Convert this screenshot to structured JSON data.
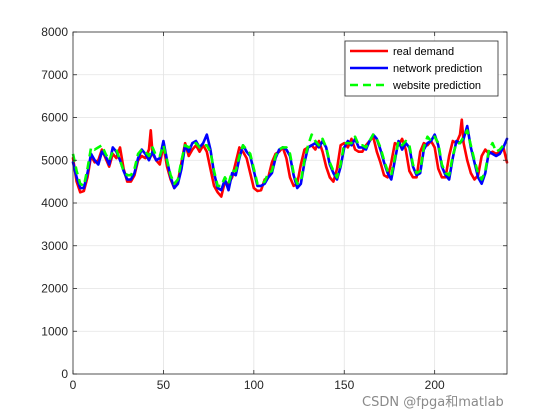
{
  "chart_data": {
    "type": "line",
    "title": "",
    "xlabel": "",
    "ylabel": "",
    "xlim": [
      0,
      240
    ],
    "ylim": [
      0,
      8000
    ],
    "xticks": [
      0,
      50,
      100,
      150,
      200
    ],
    "yticks": [
      0,
      1000,
      2000,
      3000,
      4000,
      5000,
      6000,
      7000,
      8000
    ],
    "grid": true,
    "legend_position": "top-right",
    "series": [
      {
        "name": "real demand",
        "color": "#ff0000",
        "style": "solid",
        "x": [
          0,
          2,
          4,
          6,
          8,
          10,
          12,
          14,
          16,
          18,
          20,
          22,
          24,
          26,
          28,
          30,
          32,
          34,
          36,
          38,
          40,
          42,
          43,
          44,
          46,
          48,
          50,
          52,
          54,
          56,
          58,
          60,
          62,
          64,
          66,
          68,
          70,
          72,
          74,
          76,
          78,
          80,
          82,
          84,
          86,
          88,
          90,
          92,
          94,
          96,
          98,
          100,
          102,
          104,
          106,
          108,
          110,
          112,
          114,
          116,
          118,
          120,
          122,
          124,
          126,
          128,
          130,
          132,
          134,
          136,
          138,
          140,
          142,
          144,
          146,
          148,
          150,
          152,
          154,
          156,
          158,
          160,
          162,
          164,
          166,
          168,
          170,
          172,
          174,
          176,
          178,
          180,
          182,
          184,
          186,
          188,
          190,
          192,
          194,
          196,
          198,
          200,
          202,
          204,
          206,
          208,
          210,
          212,
          214,
          215,
          216,
          218,
          220,
          222,
          224,
          226,
          228,
          230,
          232,
          234,
          236,
          238,
          240
        ],
        "values": [
          5050,
          4500,
          4250,
          4280,
          4600,
          5100,
          4950,
          5000,
          5250,
          5050,
          4850,
          5150,
          5050,
          5300,
          4800,
          4500,
          4500,
          4650,
          5000,
          5100,
          5050,
          5250,
          5700,
          5150,
          5000,
          4900,
          5350,
          4850,
          4550,
          4350,
          4500,
          4950,
          5400,
          5100,
          5250,
          5350,
          5200,
          5350,
          5200,
          4800,
          4400,
          4250,
          4150,
          4500,
          4450,
          4600,
          4950,
          5300,
          5200,
          5050,
          4700,
          4350,
          4280,
          4300,
          4550,
          4600,
          4950,
          5150,
          5200,
          5300,
          5050,
          4600,
          4400,
          4450,
          4900,
          5250,
          5300,
          5350,
          5250,
          5450,
          5200,
          4850,
          4600,
          4500,
          4800,
          5350,
          5400,
          5300,
          5500,
          5250,
          5200,
          5200,
          5350,
          5450,
          5550,
          5200,
          4950,
          4650,
          4600,
          4950,
          5400,
          5350,
          5500,
          5250,
          4750,
          4600,
          4600,
          5200,
          5400,
          5350,
          5450,
          5300,
          4800,
          4600,
          4600,
          5100,
          5450,
          5400,
          5600,
          5950,
          5400,
          5000,
          4700,
          4550,
          4650,
          5100,
          5250,
          5150,
          5200,
          5150,
          5200,
          5300,
          4950
        ]
      },
      {
        "name": "network prediction",
        "color": "#0000ff",
        "style": "solid",
        "x": [
          0,
          2,
          4,
          6,
          8,
          10,
          12,
          14,
          16,
          18,
          20,
          22,
          24,
          26,
          28,
          30,
          32,
          34,
          36,
          38,
          40,
          42,
          44,
          46,
          48,
          50,
          52,
          54,
          56,
          58,
          60,
          62,
          64,
          66,
          68,
          70,
          72,
          74,
          76,
          78,
          80,
          82,
          84,
          86,
          88,
          90,
          92,
          94,
          96,
          98,
          100,
          102,
          104,
          106,
          108,
          110,
          112,
          114,
          116,
          118,
          120,
          122,
          124,
          126,
          128,
          130,
          132,
          134,
          136,
          138,
          140,
          142,
          144,
          146,
          148,
          150,
          152,
          154,
          156,
          158,
          160,
          162,
          164,
          166,
          168,
          170,
          172,
          174,
          176,
          178,
          180,
          182,
          184,
          186,
          188,
          190,
          192,
          194,
          196,
          198,
          200,
          202,
          204,
          206,
          208,
          210,
          212,
          214,
          216,
          218,
          220,
          222,
          224,
          226,
          228,
          230,
          232,
          234,
          236,
          238,
          240
        ],
        "values": [
          4950,
          4600,
          4350,
          4350,
          4700,
          5150,
          5000,
          4900,
          5200,
          5100,
          4900,
          5300,
          5200,
          5000,
          4750,
          4550,
          4550,
          4700,
          5050,
          5250,
          5150,
          5000,
          5200,
          5000,
          5050,
          5450,
          5000,
          4600,
          4350,
          4450,
          4800,
          5350,
          5200,
          5400,
          5450,
          5300,
          5400,
          5600,
          5250,
          4700,
          4350,
          4300,
          4550,
          4300,
          4700,
          4650,
          5050,
          5350,
          5200,
          5100,
          4750,
          4400,
          4400,
          4450,
          4600,
          4700,
          5050,
          5250,
          5300,
          5250,
          5100,
          4650,
          4350,
          4450,
          4950,
          5300,
          5350,
          5400,
          5300,
          5450,
          5300,
          4900,
          4700,
          4550,
          4850,
          5300,
          5450,
          5350,
          5500,
          5300,
          5300,
          5250,
          5450,
          5600,
          5500,
          5250,
          4950,
          4700,
          4550,
          5000,
          5450,
          5250,
          5400,
          5300,
          4850,
          4650,
          4700,
          5250,
          5400,
          5450,
          5600,
          5350,
          4850,
          4650,
          4550,
          5050,
          5450,
          5400,
          5500,
          5800,
          5300,
          4950,
          4600,
          4450,
          4700,
          5200,
          5150,
          5100,
          5150,
          5300,
          5500
        ]
      },
      {
        "name": "website prediction",
        "color": "#00ff00",
        "style": "dashed",
        "x": [
          0,
          2,
          4,
          6,
          8,
          10,
          12,
          14,
          16,
          18,
          20,
          22,
          24,
          26,
          28,
          30,
          32,
          34,
          36,
          38,
          40,
          42,
          44,
          46,
          48,
          50,
          52,
          54,
          56,
          58,
          60,
          62,
          64,
          66,
          68,
          70,
          72,
          74,
          76,
          78,
          80,
          82,
          84,
          86,
          88,
          90,
          92,
          94,
          96,
          98,
          100,
          102,
          104,
          106,
          108,
          110,
          112,
          114,
          116,
          118,
          120,
          122,
          124,
          126,
          128,
          130,
          132,
          134,
          136,
          138,
          140,
          142,
          144,
          146,
          148,
          150,
          152,
          154,
          156,
          158,
          160,
          162,
          164,
          166,
          168,
          170,
          172,
          174,
          176,
          178,
          180,
          182,
          184,
          186,
          188,
          190,
          192,
          194,
          196,
          198,
          200,
          202,
          204,
          206,
          208,
          210,
          212,
          214,
          216,
          218,
          220,
          222,
          224,
          226,
          228,
          230,
          232,
          234,
          236,
          238,
          240
        ],
        "values": [
          5150,
          4750,
          4450,
          4400,
          4800,
          5300,
          5250,
          5300,
          5350,
          5150,
          5000,
          5200,
          5250,
          5000,
          4750,
          4650,
          4650,
          4800,
          5150,
          5250,
          5200,
          5100,
          5300,
          5100,
          5100,
          5350,
          5000,
          4650,
          4450,
          4550,
          5000,
          5350,
          5300,
          5350,
          5400,
          5300,
          5350,
          5350,
          5200,
          4750,
          4400,
          4400,
          4600,
          4450,
          4750,
          4750,
          5100,
          5350,
          5250,
          5150,
          4800,
          4450,
          4450,
          4500,
          4700,
          4750,
          5100,
          5250,
          5300,
          5300,
          5150,
          4700,
          4450,
          4500,
          5000,
          5350,
          5600,
          5450,
          5350,
          5500,
          5300,
          4950,
          4750,
          4600,
          4900,
          5400,
          5400,
          5400,
          5550,
          5350,
          5350,
          5300,
          5450,
          5600,
          5500,
          5300,
          5000,
          4750,
          4650,
          5050,
          5450,
          5350,
          5450,
          5350,
          4900,
          4700,
          4750,
          5300,
          5550,
          5450,
          5550,
          5400,
          4900,
          4700,
          4650,
          5100,
          5400,
          5400,
          5550,
          5700,
          5350,
          5000,
          4700,
          4550,
          4750,
          5250,
          5400,
          5200,
          5250,
          5350,
          5300
        ]
      }
    ]
  },
  "watermark": "CSDN @fpga和matlab"
}
